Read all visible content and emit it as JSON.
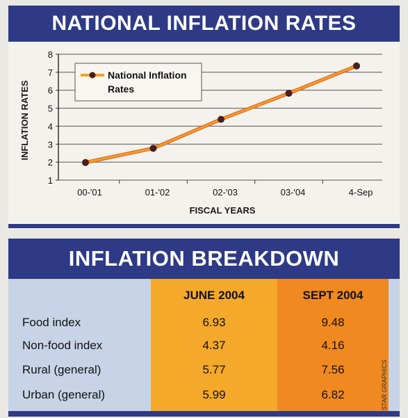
{
  "chart_title": "NATIONAL INFLATION RATES",
  "chart_data": {
    "type": "line",
    "title": "NATIONAL INFLATION RATES",
    "xlabel": "FISCAL YEARS",
    "ylabel": "INFLATION RATES",
    "categories": [
      "00-'01",
      "01-'02",
      "02-'03",
      "03-'04",
      "4-Sep"
    ],
    "ylim": [
      1,
      8
    ],
    "yticks": [
      1,
      2,
      3,
      4,
      5,
      6,
      7,
      8
    ],
    "grid": true,
    "legend_position": "top-left",
    "series": [
      {
        "name": "National Inflation Rates",
        "values": [
          1.98,
          2.77,
          4.38,
          5.83,
          7.35
        ],
        "color": "#f2a21e",
        "marker_color": "#4a1e1e"
      }
    ]
  },
  "legend": {
    "line1": "National Inflation",
    "line2": "Rates"
  },
  "breakdown": {
    "title": "INFLATION BREAKDOWN",
    "columns": [
      "JUNE 2004",
      "SEPT 2004"
    ],
    "rows": [
      {
        "label": "Food index",
        "june": "6.93",
        "sept": "9.48"
      },
      {
        "label": "Non-food index",
        "june": "4.37",
        "sept": "4.16"
      },
      {
        "label": "Rural (general)",
        "june": "5.77",
        "sept": "7.56"
      },
      {
        "label": "Urban (general)",
        "june": "5.99",
        "sept": "6.82"
      }
    ]
  },
  "credit": "STAR GRAPHICS",
  "colors": {
    "banner": "#2e3a86",
    "june_column": "#f4a92a",
    "sept_column": "#f0891f",
    "table_background": "#c7d3e6"
  }
}
